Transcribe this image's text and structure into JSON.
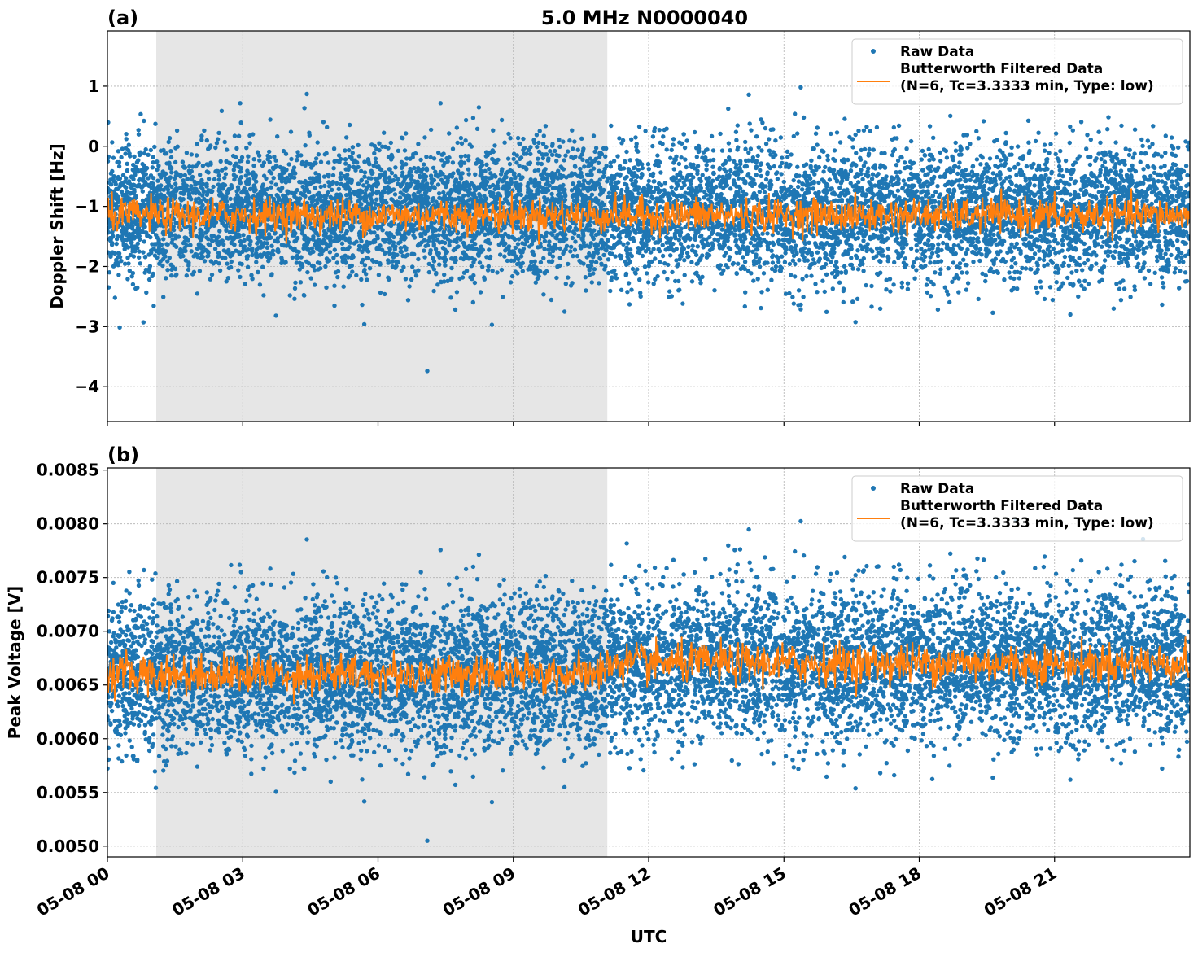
{
  "title": "5.0 MHz N0000040",
  "colors": {
    "raw": "#1f77b4",
    "filtered": "#ff7f0e",
    "shade": "#e6e6e6",
    "grid": "#b0b0b0"
  },
  "chart_data": [
    {
      "type": "scatter",
      "panel_label": "(a)",
      "ylabel": "Doppler Shift [Hz]",
      "xlabel": "",
      "xlim_hours": [
        0,
        24
      ],
      "ylim": [
        -4.58,
        1.92
      ],
      "yticks": [
        1,
        0,
        -1,
        -2,
        -3,
        -4
      ],
      "ytick_labels": [
        "1",
        "0",
        "−1",
        "−2",
        "−3",
        "−4"
      ],
      "grid": true,
      "shaded_span_utc": [
        "05-08 01:05",
        "05-08 11:05"
      ],
      "legend": {
        "placement": "top-right",
        "entries": [
          "Raw Data",
          "Butterworth Filtered Data",
          "(N=6, Tc=3.3333 min, Type: low)"
        ]
      },
      "series": [
        {
          "name": "Raw Data",
          "kind": "points",
          "approx_mean": -1.1,
          "approx_std": 0.55,
          "approx_min": -4.3,
          "approx_max": 1.6
        },
        {
          "name": "Butterworth Filtered Data",
          "kind": "line",
          "approx_mean": -1.15,
          "approx_range": [
            -1.65,
            -0.7
          ]
        }
      ]
    },
    {
      "type": "scatter",
      "panel_label": "(b)",
      "ylabel": "Peak Voltage [V]",
      "xlabel": "UTC",
      "xlim_hours": [
        0,
        24
      ],
      "ylim": [
        0.0049,
        0.00852
      ],
      "yticks": [
        0.0085,
        0.008,
        0.0075,
        0.007,
        0.0065,
        0.006,
        0.0055,
        0.005
      ],
      "ytick_labels": [
        "0.0085",
        "0.0080",
        "0.0075",
        "0.0070",
        "0.0065",
        "0.0060",
        "0.0055",
        "0.0050"
      ],
      "xticks_hours": [
        0,
        3,
        6,
        9,
        12,
        15,
        18,
        21
      ],
      "xtick_labels": [
        "05-08 00",
        "05-08 03",
        "05-08 06",
        "05-08 09",
        "05-08 12",
        "05-08 15",
        "05-08 18",
        "05-08 21"
      ],
      "grid": true,
      "shaded_span_utc": [
        "05-08 01:05",
        "05-08 11:05"
      ],
      "legend": {
        "placement": "top-right",
        "entries": [
          "Raw Data",
          "Butterworth Filtered Data",
          "(N=6, Tc=3.3333 min, Type: low)"
        ]
      },
      "series": [
        {
          "name": "Raw Data",
          "kind": "points",
          "approx_mean_before_11h": 0.0066,
          "approx_mean_after_11h": 0.0067,
          "approx_std": 0.00035,
          "approx_min": 0.00505,
          "approx_max": 0.0083
        },
        {
          "name": "Butterworth Filtered Data",
          "kind": "line",
          "approx_mean_before_11h": 0.0066,
          "approx_mean_after_11h": 0.0067,
          "approx_range": [
            0.00632,
            0.00695
          ]
        }
      ]
    }
  ]
}
